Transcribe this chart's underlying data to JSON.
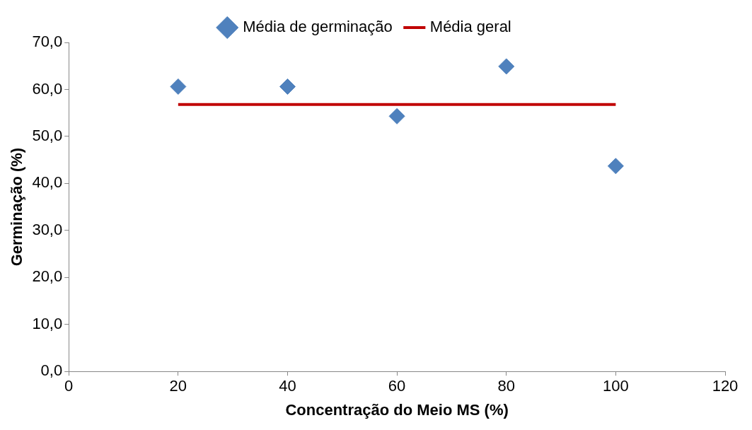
{
  "chart_data": {
    "type": "scatter",
    "xlabel": "Concentração do Meio MS (%)",
    "ylabel": "Germinação (%)",
    "x": [
      20,
      40,
      60,
      80,
      100
    ],
    "series": [
      {
        "name": "Média de germinação",
        "color": "#4f81bd",
        "values": [
          60.6,
          60.6,
          54.3,
          64.9,
          43.7
        ],
        "marker": "diamond"
      },
      {
        "name": "Média geral",
        "type": "line",
        "color": "#c00000",
        "x": [
          20,
          100
        ],
        "values": [
          56.8,
          56.8
        ],
        "marker": "none",
        "line_style": "solid"
      }
    ],
    "xlim": [
      0,
      120
    ],
    "xticks": [
      0,
      20,
      40,
      60,
      80,
      100,
      120
    ],
    "ylim": [
      0,
      70
    ],
    "yticks": [
      {
        "value": 0,
        "label": "0,0"
      },
      {
        "value": 10,
        "label": "10,0"
      },
      {
        "value": 20,
        "label": "20,0"
      },
      {
        "value": 30,
        "label": "30,0"
      },
      {
        "value": 40,
        "label": "40,0"
      },
      {
        "value": 50,
        "label": "50,0"
      },
      {
        "value": 60,
        "label": "60,0"
      },
      {
        "value": 70,
        "label": "70,0"
      }
    ],
    "grid": false,
    "legend": "top"
  }
}
